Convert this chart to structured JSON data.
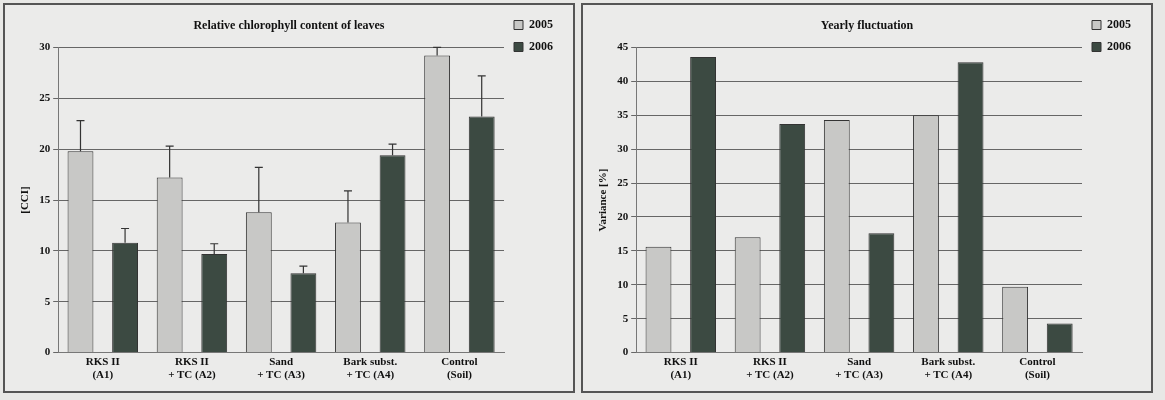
{
  "chart_data": [
    {
      "type": "bar",
      "title": "Relative chlorophyll content of leaves",
      "ylabel": "[CCI]",
      "categories": [
        "RKS II\n(A1)",
        "RKS II\n+ TC (A2)",
        "Sand\n+ TC (A3)",
        "Bark subst.\n+ TC (A4)",
        "Control\n(Soil)"
      ],
      "series": [
        {
          "name": "2005",
          "color": "#c8c8c6",
          "values": [
            19.8,
            17.2,
            13.8,
            12.8,
            29.2
          ],
          "errors": [
            [
              19.8,
              22.8
            ],
            [
              17.2,
              20.3
            ],
            [
              13.8,
              18.2
            ],
            [
              12.8,
              15.9
            ],
            [
              29.2,
              30
            ]
          ]
        },
        {
          "name": "2006",
          "color": "#3c4a42",
          "values": [
            10.8,
            9.7,
            7.8,
            19.4,
            23.2
          ],
          "errors": [
            [
              10.8,
              12.2
            ],
            [
              9.7,
              10.7
            ],
            [
              7.8,
              8.5
            ],
            [
              19.4,
              20.5
            ],
            [
              23.2,
              27.2
            ]
          ]
        }
      ],
      "ylim": [
        0,
        30
      ],
      "yticks": [
        0,
        5,
        10,
        15,
        20,
        25,
        30
      ],
      "grid": "y",
      "legend": "top right"
    },
    {
      "type": "bar",
      "title": "Yearly fluctuation",
      "ylabel": "Variance [%]",
      "categories": [
        "RKS II\n(A1)",
        "RKS II\n+ TC (A2)",
        "Sand\n+ TC (A3)",
        "Bark subst.\n+ TC (A4)",
        "Control\n(Soil)"
      ],
      "series": [
        {
          "name": "2005",
          "color": "#c8c8c6",
          "values": [
            15.6,
            17.0,
            34.3,
            35.0,
            9.7
          ]
        },
        {
          "name": "2006",
          "color": "#3c4a42",
          "values": [
            43.6,
            33.7,
            17.6,
            42.8,
            4.3
          ]
        }
      ],
      "ylim": [
        0,
        45
      ],
      "yticks": [
        0,
        5,
        10,
        15,
        20,
        25,
        30,
        35,
        40,
        45
      ],
      "grid": "y",
      "legend": "top right"
    }
  ]
}
